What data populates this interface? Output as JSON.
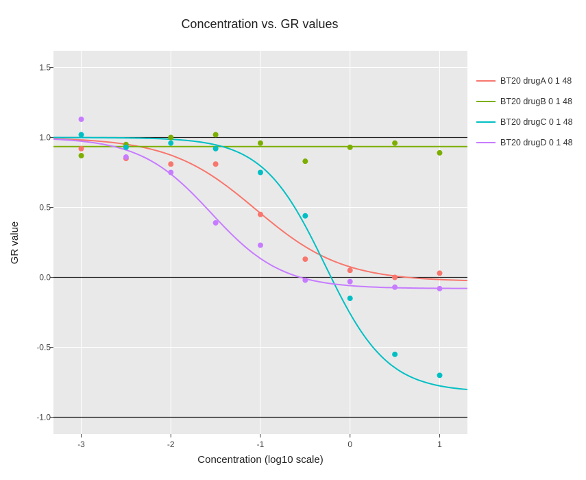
{
  "chart_data": {
    "type": "scatter",
    "title": "Concentration vs. GR values",
    "xlabel": "Concentration (log10 scale)",
    "ylabel": "GR value",
    "xlim": [
      -3.31,
      1.31
    ],
    "ylim": [
      -1.12,
      1.62
    ],
    "xticks": [
      -3,
      -2,
      -1,
      0,
      1
    ],
    "xtick_labels": [
      "-3",
      "-2",
      "-1",
      "0",
      "1"
    ],
    "yticks": [
      -1,
      -0.5,
      0,
      0.5,
      1,
      1.5
    ],
    "ytick_labels": [
      "-1.0",
      "-0.5",
      "0.0",
      "0.5",
      "1.0",
      "1.5"
    ],
    "reference_lines_y": [
      1,
      0,
      -1
    ],
    "grid": true,
    "legend_position": "top-right",
    "background": "#e9e9e9",
    "series": [
      {
        "name": "BT20 drugA 0 1 48",
        "color": "#F8766D",
        "x": [
          -3,
          -2.5,
          -2,
          -1.5,
          -1,
          -0.5,
          0,
          0.5,
          1
        ],
        "y": [
          0.92,
          0.85,
          0.81,
          0.81,
          0.45,
          0.13,
          0.05,
          0.0,
          0.03
        ],
        "fit": {
          "ginf": -0.03,
          "gec50": -1.05,
          "h": 0.9
        }
      },
      {
        "name": "BT20 drugB 0 1 48",
        "color": "#7CAE00",
        "x": [
          -3,
          -2.5,
          -2,
          -1.5,
          -1,
          -0.5,
          0,
          0.5,
          1
        ],
        "y": [
          0.87,
          0.95,
          1.0,
          1.02,
          0.96,
          0.83,
          0.93,
          0.96,
          0.89
        ],
        "fit": {
          "flat": 0.935
        }
      },
      {
        "name": "BT20 drugC 0 1 48",
        "color": "#00BFC4",
        "x": [
          -3,
          -2.5,
          -2,
          -1.5,
          -1,
          -0.5,
          0,
          0.5,
          1
        ],
        "y": [
          1.02,
          0.93,
          0.96,
          0.92,
          0.75,
          0.44,
          -0.15,
          -0.55,
          -0.7
        ],
        "fit": {
          "ginf": -0.82,
          "gec50": -0.28,
          "h": 1.25
        }
      },
      {
        "name": "BT20 drugD 0 1 48",
        "color": "#C77CFF",
        "x": [
          -3,
          -2.5,
          -2,
          -1.5,
          -1,
          -0.5,
          0,
          0.5,
          1
        ],
        "y": [
          1.13,
          0.86,
          0.75,
          0.39,
          0.23,
          -0.02,
          -0.03,
          -0.07,
          -0.08
        ],
        "fit": {
          "ginf": -0.08,
          "gec50": -1.55,
          "h": 1.1
        }
      }
    ]
  }
}
